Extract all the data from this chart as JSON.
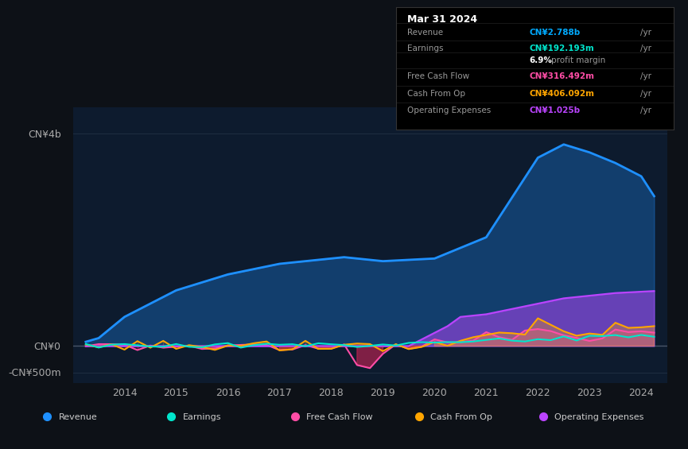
{
  "bg_color": "#0d1117",
  "plot_bg_color": "#0d1b2e",
  "grid_color": "#1e2d40",
  "zero_line_color": "#4a5568",
  "title_text": "Mar 31 2024",
  "info_box": {
    "bg": "#000000",
    "border": "#333333",
    "rows": [
      {
        "label": "Revenue",
        "value": "CN¥2.788b /yr",
        "color": "#00aaff"
      },
      {
        "label": "Earnings",
        "value": "CN¥192.193m /yr",
        "color": "#00e5cc"
      },
      {
        "label": "",
        "value": "6.9% profit margin",
        "color": "#aaaaaa"
      },
      {
        "label": "Free Cash Flow",
        "value": "CN¥316.492m /yr",
        "color": "#ff4da6"
      },
      {
        "label": "Cash From Op",
        "value": "CN¥406.092m /yr",
        "color": "#ffa500"
      },
      {
        "label": "Operating Expenses",
        "value": "CN¥1.025b /yr",
        "color": "#bb44ff"
      }
    ]
  },
  "legend": [
    {
      "label": "Revenue",
      "color": "#1e90ff"
    },
    {
      "label": "Earnings",
      "color": "#00e5cc"
    },
    {
      "label": "Free Cash Flow",
      "color": "#ff4da6"
    },
    {
      "label": "Cash From Op",
      "color": "#ffa500"
    },
    {
      "label": "Operating Expenses",
      "color": "#bb44ff"
    }
  ],
  "yticks": [
    "CN¥4b",
    "CN¥0",
    "-CN¥500m"
  ],
  "ytick_vals": [
    4000000000,
    0,
    -500000000
  ],
  "ylim": [
    -700000000,
    4500000000
  ],
  "xlim": [
    2013.0,
    2024.5
  ],
  "xticks": [
    2014,
    2015,
    2016,
    2017,
    2018,
    2019,
    2020,
    2021,
    2022,
    2023,
    2024
  ]
}
